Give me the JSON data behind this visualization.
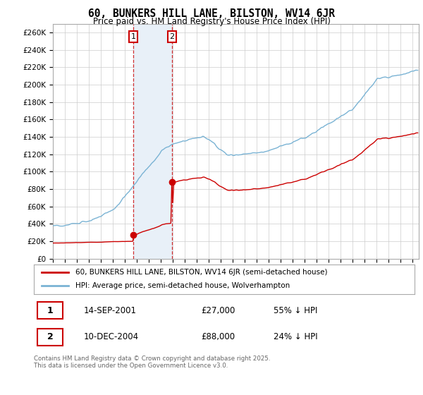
{
  "title": "60, BUNKERS HILL LANE, BILSTON, WV14 6JR",
  "subtitle": "Price paid vs. HM Land Registry's House Price Index (HPI)",
  "hpi_color": "#7ab3d4",
  "price_color": "#cc0000",
  "highlight_color": "#e8f0f8",
  "ylim": [
    0,
    270000
  ],
  "yticks": [
    0,
    20000,
    40000,
    60000,
    80000,
    100000,
    120000,
    140000,
    160000,
    180000,
    200000,
    220000,
    240000,
    260000
  ],
  "ytick_labels": [
    "£0",
    "£20K",
    "£40K",
    "£60K",
    "£80K",
    "£100K",
    "£120K",
    "£140K",
    "£160K",
    "£180K",
    "£200K",
    "£220K",
    "£240K",
    "£260K"
  ],
  "sale1_year": 2001.71,
  "sale1_price": 27000,
  "sale2_year": 2004.94,
  "sale2_price": 88000,
  "legend_line1": "60, BUNKERS HILL LANE, BILSTON, WV14 6JR (semi-detached house)",
  "legend_line2": "HPI: Average price, semi-detached house, Wolverhampton",
  "table_row1": [
    "1",
    "14-SEP-2001",
    "£27,000",
    "55% ↓ HPI"
  ],
  "table_row2": [
    "2",
    "10-DEC-2004",
    "£88,000",
    "24% ↓ HPI"
  ],
  "footnote": "Contains HM Land Registry data © Crown copyright and database right 2025.\nThis data is licensed under the Open Government Licence v3.0.",
  "background_color": "#ffffff",
  "grid_color": "#cccccc"
}
